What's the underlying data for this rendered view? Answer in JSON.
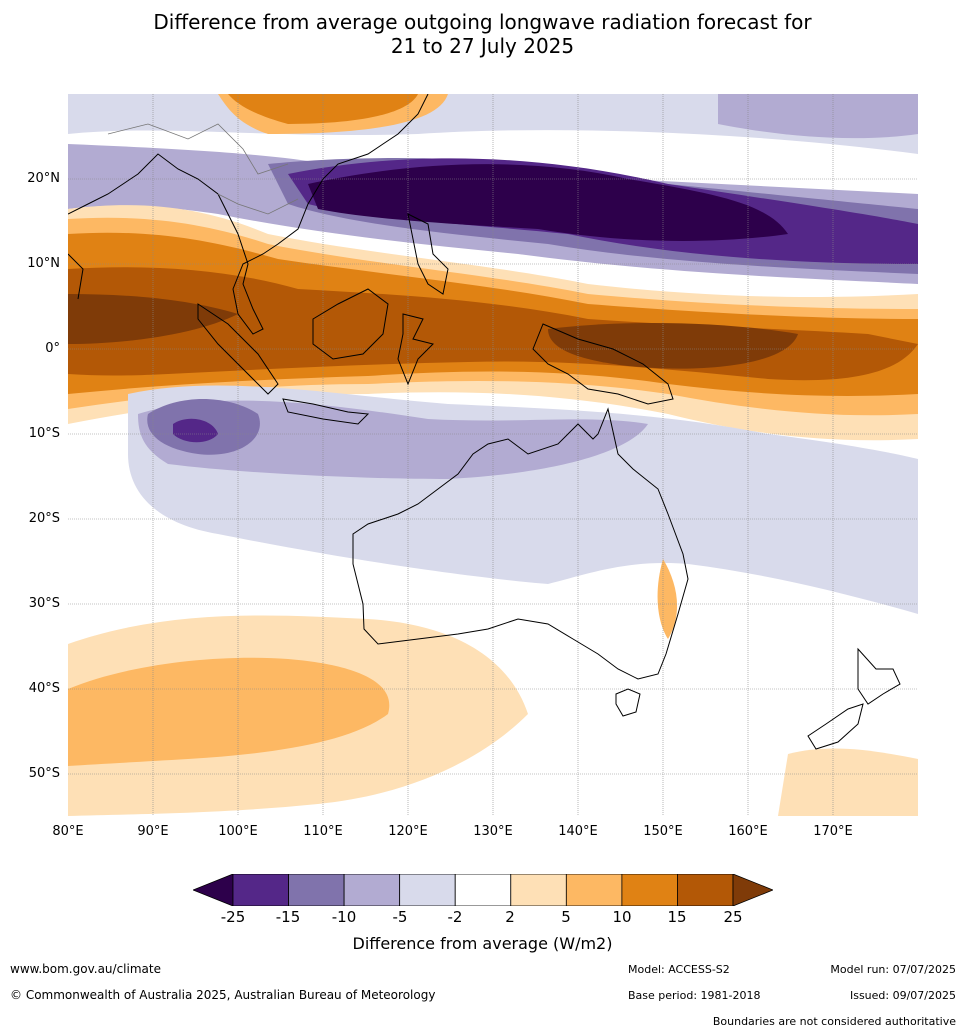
{
  "title_line1": "Difference from average outgoing longwave radiation forecast for",
  "title_line2": "21 to 27 July 2025",
  "lat_labels": [
    "20°N",
    "10°N",
    "0°",
    "10°S",
    "20°S",
    "30°S",
    "40°S",
    "50°S"
  ],
  "lon_labels": [
    "80°E",
    "90°E",
    "100°E",
    "110°E",
    "120°E",
    "130°E",
    "140°E",
    "150°E",
    "160°E",
    "170°E"
  ],
  "colorbar": {
    "ticks": [
      "-25",
      "-15",
      "-10",
      "-5",
      "-2",
      "2",
      "5",
      "10",
      "15",
      "25"
    ],
    "colors": [
      "#2d004b",
      "#542788",
      "#8073ac",
      "#b2abd2",
      "#d8daeb",
      "#ffffff",
      "#fee0b6",
      "#fdb863",
      "#e08214",
      "#b35806",
      "#7f3b08"
    ],
    "label": "Difference from average (W/m2)"
  },
  "footer": {
    "website": "www.bom.gov.au/climate",
    "copyright": "© Commonwealth of Australia 2025, Australian Bureau of Meteorology",
    "model": "Model: ACCESS-S2",
    "base_period": "Base period: 1981-2018",
    "model_run": "Model run: 07/07/2025",
    "issued": "Issued: 09/07/2025",
    "disclaimer": "Boundaries are not considered authoritative"
  }
}
